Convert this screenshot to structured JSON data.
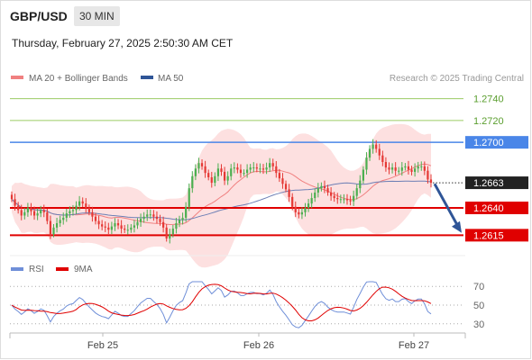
{
  "header": {
    "symbol": "GBP/USD",
    "interval": "30 MIN",
    "timestamp": "Thursday, February 27, 2025 2:50:30 AM CET"
  },
  "legend": {
    "items": [
      {
        "label": "MA 20 + Bollinger Bands",
        "color": "#f08080"
      },
      {
        "label": "MA 50",
        "color": "#2f5597"
      }
    ],
    "credit": "Research © 2025 Trading Central"
  },
  "colors": {
    "bull": "#4caf50",
    "bear": "#e53935",
    "ma20": "#f08080",
    "ma50": "#6d7fb5",
    "bollinger_fill": "#fde0e0",
    "target_lines": "#9ccc65",
    "pivot_line": "#4a86e8",
    "support_lines": "#e00000",
    "last_price_bg": "#222222",
    "arrow": "#2f5597",
    "rsi": "#6f8fd8",
    "rsi_ma": "#e00000"
  },
  "chart_data": [
    {
      "type": "candlestick",
      "title": "GBP/USD 30 MIN",
      "x_ticks": [
        "Feb 25",
        "Feb 26",
        "Feb 27"
      ],
      "ylim": [
        1.2598,
        1.2752
      ],
      "last_price": 1.2663,
      "levels": [
        {
          "value": 1.274,
          "label": "1.2740",
          "kind": "target"
        },
        {
          "value": 1.272,
          "label": "1.2720",
          "kind": "target"
        },
        {
          "value": 1.27,
          "label": "1.2700",
          "kind": "pivot"
        },
        {
          "value": 1.2663,
          "label": "1.2663",
          "kind": "last"
        },
        {
          "value": 1.264,
          "label": "1.2640",
          "kind": "support"
        },
        {
          "value": 1.2615,
          "label": "1.2615",
          "kind": "support"
        }
      ],
      "forecast_arrow": {
        "from": 1.2662,
        "to": 1.2618
      },
      "closes": [
        1.2648,
        1.2642,
        1.2638,
        1.2633,
        1.2636,
        1.264,
        1.2637,
        1.2633,
        1.2635,
        1.2638,
        1.2636,
        1.2628,
        1.2616,
        1.2622,
        1.2626,
        1.2629,
        1.2631,
        1.2635,
        1.2637,
        1.2638,
        1.2642,
        1.2646,
        1.2644,
        1.264,
        1.2636,
        1.2632,
        1.2628,
        1.2625,
        1.2623,
        1.2622,
        1.262,
        1.2623,
        1.2626,
        1.2624,
        1.2621,
        1.262,
        1.262,
        1.2622,
        1.2624,
        1.2627,
        1.263,
        1.2632,
        1.2634,
        1.2634,
        1.2632,
        1.263,
        1.2627,
        1.2622,
        1.2612,
        1.2616,
        1.2621,
        1.2626,
        1.2629,
        1.2631,
        1.2641,
        1.2658,
        1.2669,
        1.2676,
        1.2681,
        1.2678,
        1.2672,
        1.2668,
        1.2663,
        1.2669,
        1.2676,
        1.2673,
        1.2665,
        1.2669,
        1.2676,
        1.2677,
        1.2675,
        1.2672,
        1.2672,
        1.2675,
        1.2677,
        1.2677,
        1.2676,
        1.2676,
        1.2675,
        1.2677,
        1.2681,
        1.2678,
        1.2672,
        1.2667,
        1.2662,
        1.2657,
        1.265,
        1.2641,
        1.2636,
        1.2634,
        1.2636,
        1.264,
        1.2644,
        1.2649,
        1.2654,
        1.2658,
        1.266,
        1.2658,
        1.2654,
        1.2651,
        1.2649,
        1.2648,
        1.2648,
        1.2648,
        1.2647,
        1.2646,
        1.2651,
        1.2658,
        1.2665,
        1.2675,
        1.2686,
        1.2694,
        1.2698,
        1.2694,
        1.2688,
        1.2682,
        1.2677,
        1.2675,
        1.2677,
        1.2674,
        1.2674,
        1.2677,
        1.2678,
        1.2675,
        1.2673,
        1.2676,
        1.2678,
        1.2678,
        1.2674,
        1.2666,
        1.2663
      ]
    },
    {
      "type": "line",
      "title": "RSI",
      "series": [
        {
          "name": "RSI"
        },
        {
          "name": "9MA"
        }
      ],
      "yticks": [
        70,
        50,
        30
      ],
      "ylim": [
        25,
        75
      ]
    }
  ]
}
